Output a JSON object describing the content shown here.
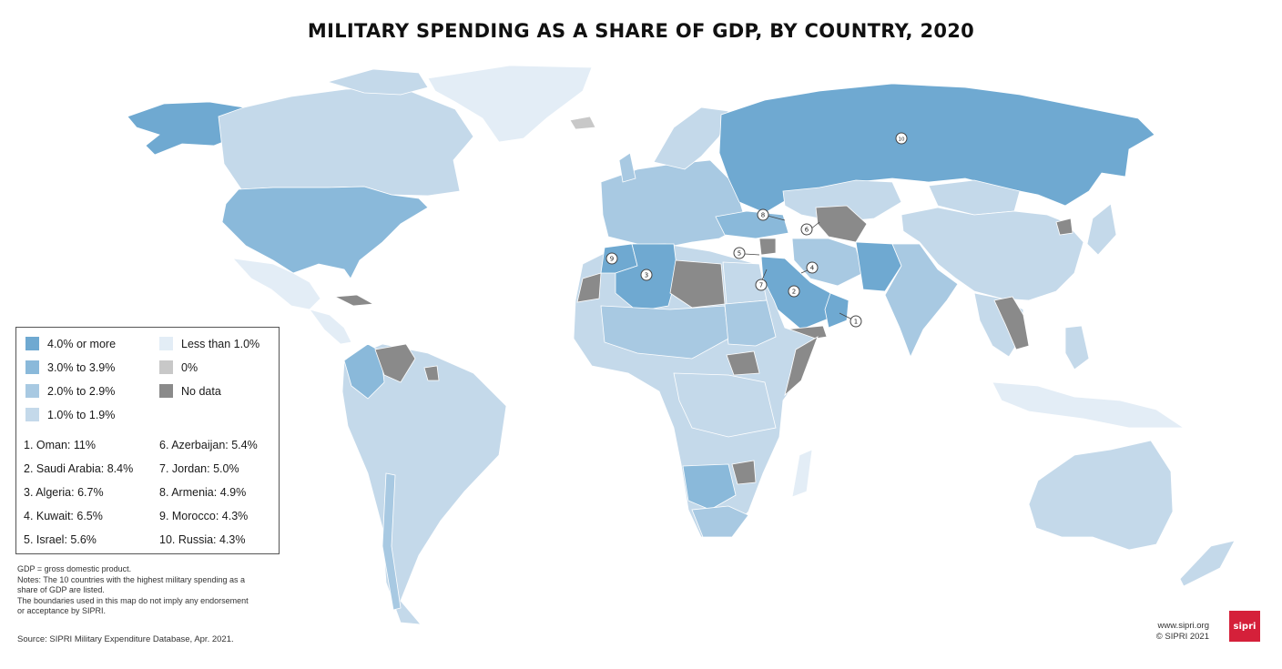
{
  "title": "MILITARY SPENDING AS A SHARE OF GDP, BY COUNTRY, 2020",
  "colors": {
    "band_4_plus": "#6fa9d1",
    "band_3_to_3_9": "#8ab9da",
    "band_2_to_2_9": "#a8c9e2",
    "band_1_to_1_9": "#c4d9ea",
    "band_less_than_1": "#e3edf6",
    "band_zero": "#c8c8c8",
    "band_no_data": "#8a8a8a",
    "logo": "#d5203a"
  },
  "legend": {
    "keys": [
      {
        "label": "4.0% or more",
        "color": "#6fa9d1"
      },
      {
        "label": "3.0% to 3.9%",
        "color": "#8ab9da"
      },
      {
        "label": "2.0% to 2.9%",
        "color": "#a8c9e2"
      },
      {
        "label": "1.0% to 1.9%",
        "color": "#c4d9ea"
      },
      {
        "label": "Less than 1.0%",
        "color": "#e3edf6"
      },
      {
        "label": "0%",
        "color": "#c8c8c8"
      },
      {
        "label": "No data",
        "color": "#8a8a8a"
      }
    ],
    "top10": [
      {
        "rank": "1.",
        "country": "Oman",
        "value": "11%"
      },
      {
        "rank": "2.",
        "country": "Saudi Arabia",
        "value": "8.4%"
      },
      {
        "rank": "3.",
        "country": "Algeria",
        "value": "6.7%"
      },
      {
        "rank": "4.",
        "country": "Kuwait",
        "value": "6.5%"
      },
      {
        "rank": "5.",
        "country": "Israel",
        "value": "5.6%"
      },
      {
        "rank": "6.",
        "country": "Azerbaijan",
        "value": "5.4%"
      },
      {
        "rank": "7.",
        "country": "Jordan",
        "value": "5.0%"
      },
      {
        "rank": "8.",
        "country": "Armenia",
        "value": "4.9%"
      },
      {
        "rank": "9.",
        "country": "Morocco",
        "value": "4.3%"
      },
      {
        "rank": "10.",
        "country": "Russia",
        "value": "4.3%"
      }
    ]
  },
  "top10_text": [
    "1. Oman: 11%",
    "2. Saudi Arabia: 8.4%",
    "3. Algeria: 6.7%",
    "4. Kuwait: 6.5%",
    "5. Israel: 5.6%",
    "6. Azerbaijan: 5.4%",
    "7. Jordan: 5.0%",
    "8. Armenia: 4.9%",
    "9. Morocco: 4.3%",
    "10. Russia: 4.3%"
  ],
  "map_markers": [
    "1",
    "2",
    "3",
    "4",
    "5",
    "6",
    "7",
    "8",
    "9",
    "10"
  ],
  "notes": [
    "GDP = gross domestic product.",
    "Notes: The 10 countries with the highest military spending as a",
    "share of GDP are listed.",
    "The boundaries used in this map do not imply any endorsement",
    "or acceptance by SIPRI."
  ],
  "source": "Source: SIPRI Military Expenditure Database, Apr. 2021.",
  "credits": [
    "www.sipri.org",
    "© SIPRI 2021"
  ],
  "logo_text": "sipri"
}
